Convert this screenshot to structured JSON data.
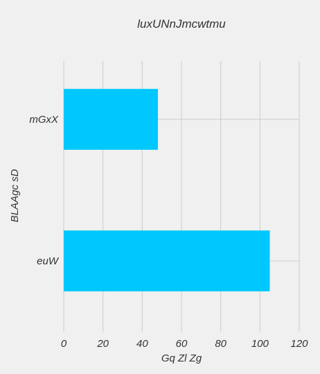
{
  "chart_data": {
    "type": "bar",
    "orientation": "horizontal",
    "title": "luxUNnJmcwtmu",
    "xlabel": "Gq Zl Zg",
    "ylabel": "BLAAgc sD",
    "categories": [
      "mGxX",
      "euW"
    ],
    "values": [
      48,
      105
    ],
    "xlim": [
      0,
      120
    ],
    "xticks": [
      "0",
      "20",
      "40",
      "60",
      "80",
      "100",
      "120"
    ],
    "grid": true,
    "bar_color": "#00c8ff",
    "background_color": "#f0f0f0"
  }
}
